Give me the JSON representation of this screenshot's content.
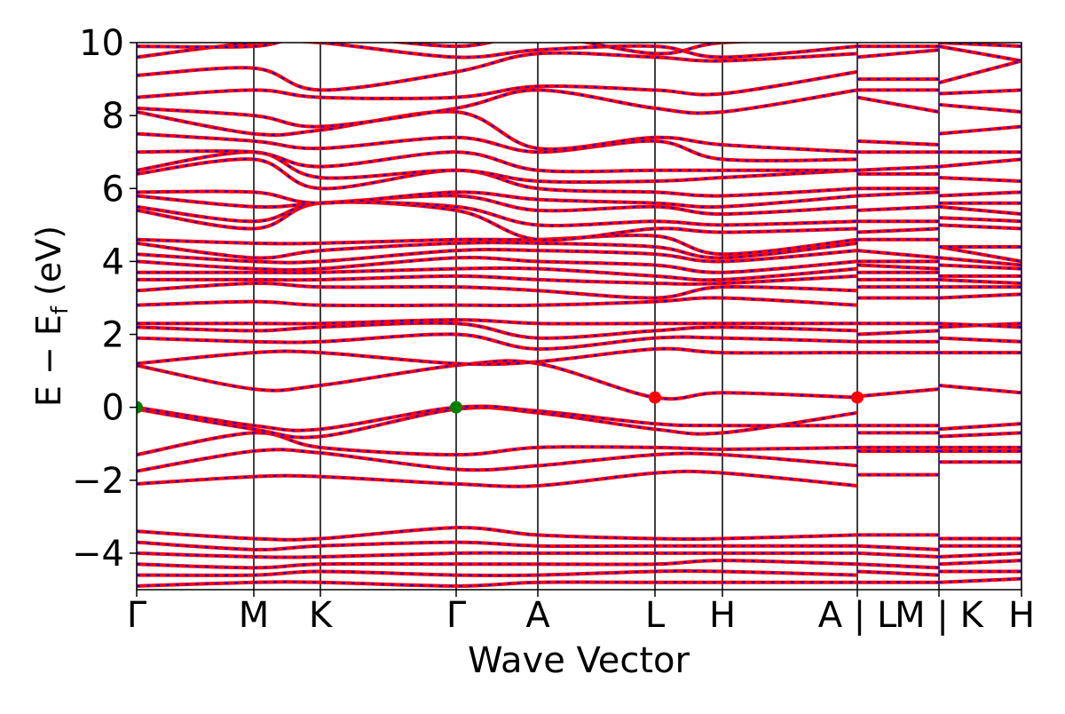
{
  "chart_data": {
    "type": "line",
    "ylabel": [
      "E − E",
      "f",
      " (eV)"
    ],
    "xlabel": "Wave Vector",
    "x": [
      0,
      1.32,
      2.07,
      3.6,
      4.52,
      5.84,
      6.6,
      8.12,
      8.12,
      8.12,
      9.04,
      9.04,
      9.04,
      9.97
    ],
    "xlim": [
      0,
      9.97
    ],
    "xticks": [
      {
        "value": 0,
        "label": "Γ"
      },
      {
        "value": 1.32,
        "label": "M"
      },
      {
        "value": 2.07,
        "label": "K"
      },
      {
        "value": 3.6,
        "label": "Γ"
      },
      {
        "value": 4.52,
        "label": "A"
      },
      {
        "value": 5.84,
        "label": "L"
      },
      {
        "value": 6.6,
        "label": "H"
      },
      {
        "value": 8.12,
        "label": "A | L"
      },
      {
        "value": 9.04,
        "label": "M | K"
      },
      {
        "value": 9.97,
        "label": "H"
      }
    ],
    "ylim": [
      -5,
      10
    ],
    "yticks": [
      {
        "value": -4,
        "label": "−4"
      },
      {
        "value": -2,
        "label": "−2"
      },
      0,
      2,
      4,
      6,
      8,
      10
    ],
    "xgrid": true,
    "dash_color": "#0000ff",
    "series": [
      {
        "color": "#ff0000",
        "values": [
          -4.9,
          -4.8,
          -4.8,
          -4.9,
          -4.8,
          -4.8,
          -4.8,
          -4.8,
          null,
          -4.8,
          -4.8,
          null,
          -4.8,
          -4.7
        ]
      },
      {
        "color": "#ff0000",
        "values": [
          -4.6,
          -4.6,
          -4.5,
          -4.6,
          -4.6,
          -4.5,
          -4.5,
          -4.6,
          null,
          -4.5,
          -4.6,
          null,
          -4.5,
          -4.5
        ]
      },
      {
        "color": "#ff0000",
        "values": [
          -4.3,
          -4.4,
          -4.3,
          -4.3,
          -4.3,
          -4.3,
          -4.2,
          -4.3,
          null,
          -4.3,
          -4.4,
          null,
          -4.3,
          -4.2
        ]
      },
      {
        "color": "#ff0000",
        "values": [
          -4.0,
          -4.1,
          -4.1,
          -4.0,
          -4.0,
          -4.0,
          -4.0,
          -4.0,
          null,
          -4.0,
          -4.1,
          null,
          -4.1,
          -4.0
        ]
      },
      {
        "color": "#ff0000",
        "values": [
          -3.7,
          -3.9,
          -3.8,
          -3.7,
          -3.8,
          -3.8,
          -3.8,
          -3.8,
          null,
          -3.8,
          -3.9,
          null,
          -3.8,
          -3.8
        ]
      },
      {
        "color": "#ff0000",
        "values": [
          -3.4,
          -3.6,
          -3.6,
          -3.3,
          -3.5,
          -3.6,
          -3.6,
          -3.5,
          null,
          -3.5,
          -3.5,
          null,
          -3.6,
          -3.6
        ]
      },
      {
        "color": "#ff0000",
        "values": [
          -2.1,
          -1.9,
          -1.9,
          -2.1,
          -2.15,
          -1.8,
          -1.8,
          -2.15,
          null,
          -1.85,
          -1.85,
          null,
          -1.5,
          -1.5
        ]
      },
      {
        "color": "#ff0000",
        "values": [
          -1.75,
          -1.2,
          -1.25,
          -1.7,
          -1.6,
          -1.3,
          -1.3,
          -1.6,
          null,
          -1.2,
          -1.2,
          null,
          -1.2,
          -1.2
        ]
      },
      {
        "color": "#ff0000",
        "values": [
          -1.3,
          -0.7,
          -1.1,
          -1.3,
          -1.1,
          -1.1,
          -1.15,
          -1.1,
          null,
          -1.1,
          -1.1,
          null,
          -1.1,
          -1.1
        ]
      },
      {
        "color": "#ff0000",
        "values": [
          -0.05,
          -0.6,
          -0.8,
          -0.05,
          -0.15,
          -0.6,
          -0.7,
          -0.15,
          null,
          -0.7,
          -0.7,
          null,
          -0.8,
          -0.7
        ]
      },
      {
        "color": "#ff0000",
        "values": [
          0,
          -0.5,
          -0.6,
          0,
          -0.1,
          -0.45,
          -0.5,
          -0.5,
          null,
          -0.5,
          -0.5,
          null,
          -0.6,
          -0.45
        ]
      },
      {
        "color": "#ff0000",
        "values": [
          1.15,
          0.5,
          0.6,
          1.15,
          1.2,
          0.27,
          0.4,
          0.27,
          null,
          0.3,
          0.5,
          null,
          0.6,
          0.4
        ]
      },
      {
        "color": "#ff0000",
        "values": [
          1.2,
          1.5,
          1.5,
          1.2,
          1.25,
          1.6,
          1.5,
          1.5,
          null,
          1.5,
          1.5,
          null,
          1.5,
          1.5
        ]
      },
      {
        "color": "#ff0000",
        "values": [
          1.9,
          1.8,
          1.8,
          2.0,
          1.6,
          1.9,
          1.9,
          1.8,
          null,
          1.8,
          1.8,
          null,
          1.9,
          1.8
        ]
      },
      {
        "color": "#ff0000",
        "values": [
          2.2,
          2.1,
          2.2,
          2.3,
          1.9,
          2.1,
          2.2,
          2.1,
          null,
          2.0,
          2.1,
          null,
          2.2,
          2.3
        ]
      },
      {
        "color": "#ff0000",
        "values": [
          2.3,
          2.3,
          2.3,
          2.4,
          2.3,
          2.3,
          2.3,
          2.3,
          null,
          2.3,
          2.3,
          null,
          2.3,
          2.2
        ]
      },
      {
        "color": "#ff0000",
        "values": [
          2.8,
          2.9,
          2.8,
          2.8,
          2.8,
          2.9,
          3.0,
          2.8,
          null,
          3.0,
          3.0,
          null,
          3.0,
          3.1
        ]
      },
      {
        "color": "#ff0000",
        "values": [
          3.2,
          3.4,
          3.3,
          3.3,
          3.2,
          3.0,
          3.3,
          3.2,
          null,
          3.3,
          3.3,
          null,
          3.3,
          3.3
        ]
      },
      {
        "color": "#ff0000",
        "values": [
          3.5,
          3.5,
          3.5,
          3.6,
          3.5,
          3.4,
          3.4,
          3.6,
          null,
          3.5,
          3.5,
          null,
          3.5,
          3.4
        ]
      },
      {
        "color": "#ff0000",
        "values": [
          3.7,
          3.7,
          3.7,
          3.8,
          3.8,
          3.6,
          3.5,
          3.8,
          null,
          3.7,
          3.7,
          null,
          3.6,
          3.6
        ]
      },
      {
        "color": "#ff0000",
        "values": [
          4.0,
          3.8,
          3.8,
          4.1,
          4.0,
          3.9,
          3.7,
          4.0,
          null,
          3.9,
          3.8,
          null,
          3.9,
          3.8
        ]
      },
      {
        "color": "#ff0000",
        "values": [
          4.2,
          4.0,
          4.0,
          4.3,
          4.3,
          4.2,
          4.0,
          4.3,
          null,
          4.0,
          4.0,
          null,
          4.1,
          3.9
        ]
      },
      {
        "color": "#ff0000",
        "values": [
          4.5,
          4.1,
          4.3,
          4.5,
          4.5,
          4.4,
          4.1,
          4.5,
          null,
          4.3,
          4.1,
          null,
          4.4,
          4.0
        ]
      },
      {
        "color": "#ff0000",
        "values": [
          4.6,
          4.5,
          4.5,
          4.6,
          4.6,
          4.7,
          4.2,
          4.6,
          null,
          4.6,
          4.6,
          null,
          4.4,
          4.4
        ]
      },
      {
        "color": "#ff0000",
        "values": [
          5.4,
          4.9,
          5.6,
          5.4,
          4.6,
          4.9,
          4.8,
          4.9,
          null,
          4.8,
          4.9,
          null,
          5.0,
          4.9
        ]
      },
      {
        "color": "#ff0000",
        "values": [
          5.5,
          5.1,
          5.6,
          5.5,
          5.0,
          5.1,
          5.0,
          5.1,
          null,
          5.1,
          5.1,
          null,
          5.2,
          5.1
        ]
      },
      {
        "color": "#ff0000",
        "values": [
          5.8,
          5.5,
          5.6,
          5.8,
          5.4,
          5.5,
          5.3,
          5.5,
          null,
          5.4,
          5.5,
          null,
          5.5,
          5.3
        ]
      },
      {
        "color": "#ff0000",
        "values": [
          5.9,
          5.9,
          5.6,
          5.9,
          5.7,
          5.6,
          5.5,
          5.8,
          null,
          5.8,
          5.9,
          null,
          5.6,
          5.6
        ]
      },
      {
        "color": "#ff0000",
        "values": [
          6.4,
          6.8,
          6.0,
          6.5,
          6.0,
          5.9,
          5.8,
          6.0,
          null,
          6.0,
          6.0,
          null,
          5.8,
          5.9
        ]
      },
      {
        "color": "#ff0000",
        "values": [
          6.5,
          7.0,
          6.3,
          6.5,
          6.2,
          6.2,
          6.3,
          6.5,
          null,
          6.4,
          6.4,
          null,
          6.3,
          6.2
        ]
      },
      {
        "color": "#ff0000",
        "values": [
          7.0,
          7.0,
          6.6,
          7.0,
          6.5,
          6.5,
          6.5,
          6.5,
          null,
          6.5,
          6.6,
          null,
          6.6,
          6.8
        ]
      },
      {
        "color": "#ff0000",
        "values": [
          7.5,
          7.3,
          7.1,
          7.4,
          7.0,
          7.3,
          6.8,
          6.8,
          null,
          7.0,
          7.0,
          null,
          7.0,
          7.0
        ]
      },
      {
        "color": "#ff0000",
        "values": [
          8.1,
          7.5,
          7.6,
          8.1,
          7.1,
          7.4,
          7.2,
          7.0,
          null,
          7.3,
          7.2,
          null,
          7.5,
          7.7
        ]
      },
      {
        "color": "#ff0000",
        "values": [
          8.2,
          8.0,
          7.7,
          8.2,
          8.7,
          8.2,
          8.1,
          8.7,
          null,
          8.5,
          8.1,
          null,
          8.3,
          8.1
        ]
      },
      {
        "color": "#ff0000",
        "values": [
          8.5,
          8.7,
          8.5,
          8.5,
          8.8,
          8.7,
          8.6,
          9.2,
          null,
          8.7,
          8.7,
          null,
          8.6,
          8.7
        ]
      },
      {
        "color": "#ff0000",
        "values": [
          9.1,
          9.3,
          8.7,
          9.2,
          9.7,
          9.6,
          9.5,
          9.7,
          null,
          9.0,
          9.0,
          null,
          8.9,
          9.5
        ]
      },
      {
        "color": "#ff0000",
        "values": [
          9.6,
          10.0,
          10.0,
          9.6,
          9.8,
          9.9,
          9.6,
          9.9,
          null,
          9.6,
          9.8,
          null,
          9.9,
          9.5
        ]
      },
      {
        "color": "#ff0000",
        "values": [
          9.9,
          9.9,
          10.2,
          9.9,
          10.2,
          9.7,
          10.0,
          10.1,
          null,
          9.9,
          9.9,
          null,
          10.0,
          9.9
        ]
      }
    ],
    "markers": [
      {
        "color": "#008000",
        "x": [
          0,
          3.6
        ],
        "values": [
          0,
          0
        ]
      },
      {
        "color": "#ff0000",
        "x": [
          5.84,
          8.12
        ],
        "values": [
          0.27,
          0.27
        ]
      }
    ]
  }
}
